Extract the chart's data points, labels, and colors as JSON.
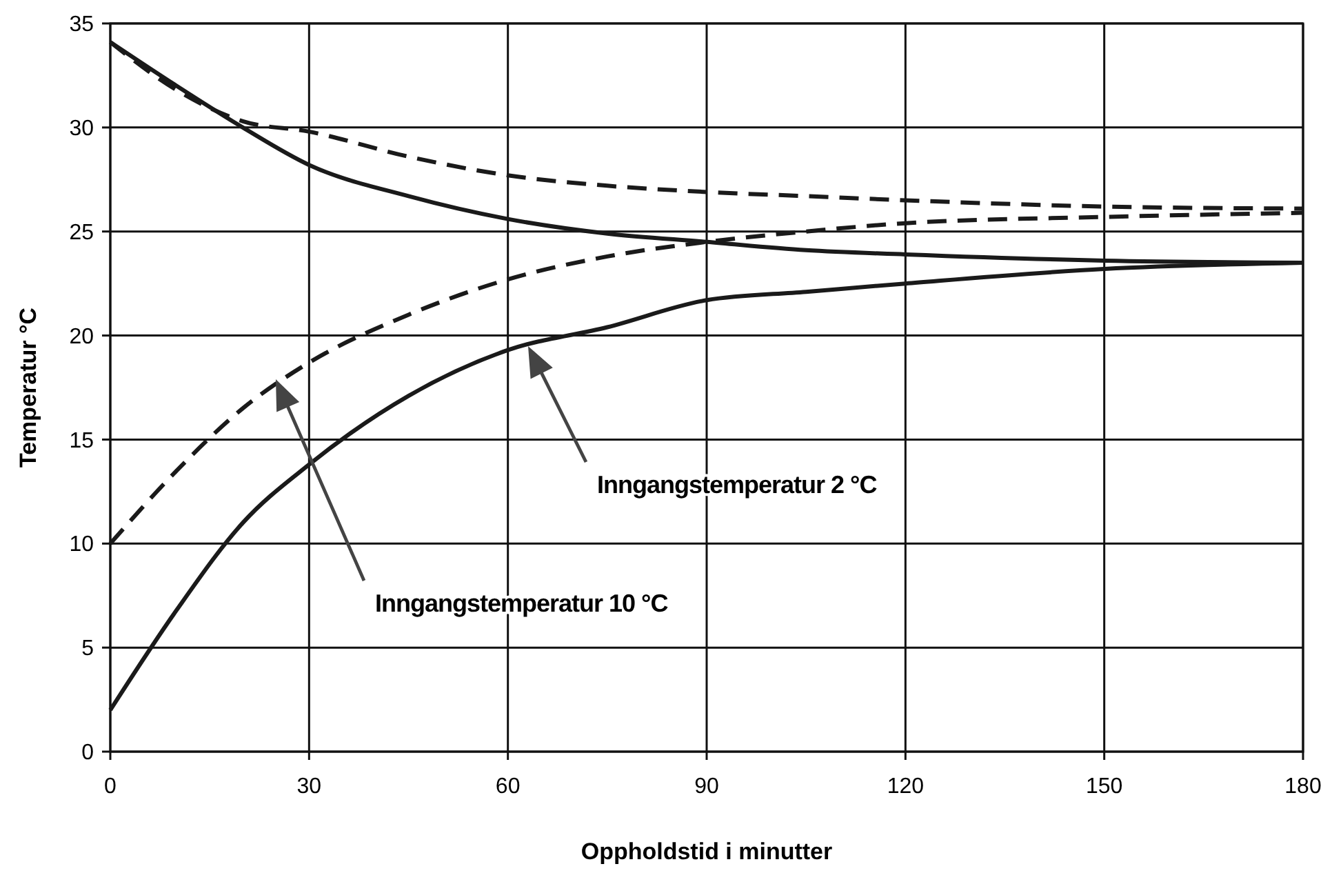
{
  "chart_data": {
    "type": "line",
    "xlabel": "Oppholdstid i minutter",
    "ylabel": "Temperatur °C",
    "x": [
      0,
      10,
      20,
      30,
      45,
      60,
      75,
      90,
      105,
      120,
      150,
      180
    ],
    "series": [
      {
        "color": "#1a1a1a",
        "line_style": "solid",
        "values": [
          2,
          6.8,
          11,
          13.8,
          17.1,
          19.3,
          20.4,
          21.7,
          22.1,
          22.5,
          23.2,
          23.5
        ]
      },
      {
        "color": "#1a1a1a",
        "line_style": "solid",
        "values": [
          34.1,
          32,
          30,
          28.2,
          26.7,
          25.6,
          24.9,
          24.5,
          24.1,
          23.9,
          23.6,
          23.5
        ]
      },
      {
        "color": "#1a1a1a",
        "line_style": "dashed",
        "values": [
          10,
          13.5,
          16.5,
          18.7,
          21,
          22.7,
          23.8,
          24.5,
          25,
          25.4,
          25.7,
          25.9
        ]
      },
      {
        "color": "#1a1a1a",
        "line_style": "dashed",
        "values": [
          34.1,
          31.8,
          30.3,
          29.8,
          28.6,
          27.7,
          27.2,
          26.9,
          26.7,
          26.5,
          26.2,
          26.1
        ]
      }
    ],
    "xlim": [
      0,
      180
    ],
    "xticks": [
      0,
      30,
      60,
      90,
      120,
      150,
      180
    ],
    "ylim": [
      0,
      35
    ],
    "yticks": [
      0,
      5,
      10,
      15,
      20,
      25,
      30,
      35
    ],
    "grid": true,
    "marker": "none",
    "annotations": [
      "Inngangstemperatur 2 °C",
      "Inngangstemperatur 10 °C"
    ]
  }
}
